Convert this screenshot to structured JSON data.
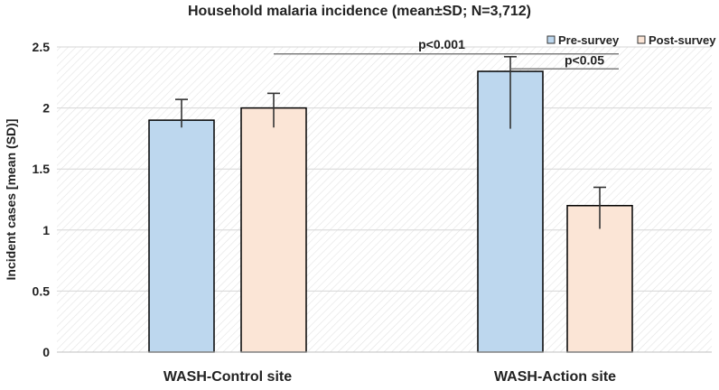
{
  "chart_data": {
    "type": "bar",
    "title": "Household malaria incidence (mean±SD; N=3,712)",
    "xlabel": "",
    "ylabel": "Incident cases [mean (SD)]",
    "ylim": [
      0,
      2.5
    ],
    "yticks": [
      0,
      0.5,
      1,
      1.5,
      2,
      2.5
    ],
    "ytick_labels": [
      "0",
      "0.5",
      "1",
      "1.5",
      "2",
      "2.5"
    ],
    "grid": true,
    "legend_position": "top-right",
    "categories": [
      "WASH-Control site",
      "WASH-Action site"
    ],
    "series": [
      {
        "name": "Pre-survey",
        "color": "#bdd7ee",
        "values": [
          1.9,
          2.3
        ],
        "err_upper": [
          0.17,
          0.12
        ],
        "err_lower": [
          0.06,
          0.47
        ]
      },
      {
        "name": "Post-survey",
        "color": "#fbe5d6",
        "values": [
          2.0,
          1.2
        ],
        "err_upper": [
          0.12,
          0.15
        ],
        "err_lower": [
          0.16,
          0.19
        ]
      }
    ],
    "annotations": [
      {
        "label": "p<0.001",
        "from": "WASH-Control site / Post-survey",
        "to": "WASH-Action site / Post-survey",
        "y": 2.45
      },
      {
        "label": "p<0.05",
        "from": "WASH-Action site / Pre-survey",
        "to": "WASH-Action site / Post-survey",
        "y": 2.35
      }
    ]
  }
}
